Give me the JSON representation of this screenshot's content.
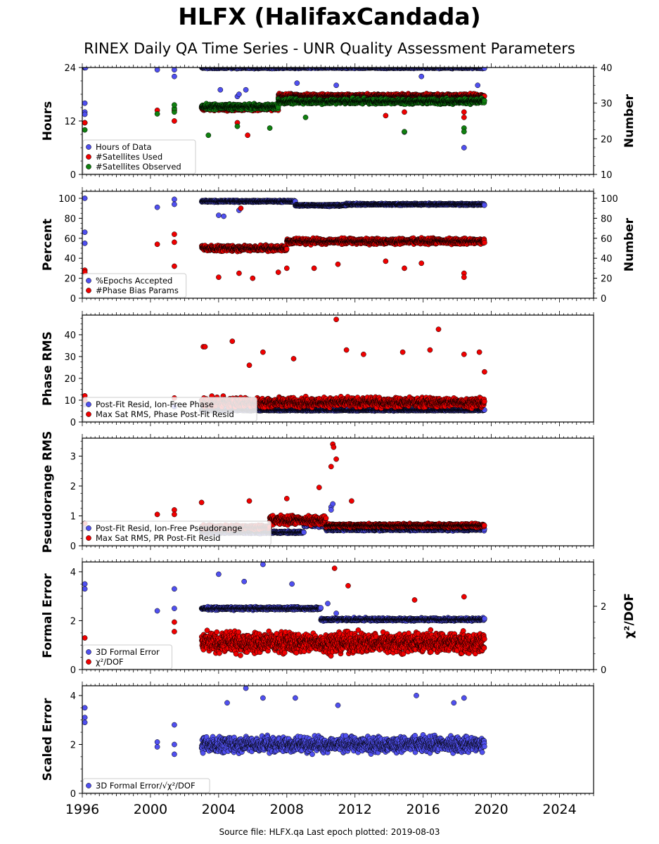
{
  "title": "HLFX (HalifaxCandada)",
  "subtitle": "RINEX Daily QA Time Series - UNR Quality Assessment Parameters",
  "source_text": "Source file: HLFX.qa Last epoch plotted: 2019-08-03",
  "colors": {
    "blue": "#5050f0",
    "red": "#f00000",
    "green": "#108010",
    "edge": "#000000"
  },
  "chart_data": [
    {
      "type": "scatter",
      "ylabel": "Hours",
      "ylabel_right": "Number",
      "xlim": [
        1996,
        2026
      ],
      "ylim": [
        0,
        24
      ],
      "ylim_right": [
        10,
        40
      ],
      "yticks": [
        0,
        12,
        24
      ],
      "yticks_right": [
        10,
        20,
        30,
        40
      ],
      "legend": "bottom-left",
      "series": [
        {
          "name": "Hours of Data",
          "color": "blue",
          "axis": "left",
          "segments": [
            [
              1996.1,
              1996.2,
              24,
              0.2
            ],
            [
              2003.0,
              2019.6,
              24,
              0.3
            ]
          ],
          "points": [
            [
              1996.15,
              16
            ],
            [
              1996.15,
              14
            ],
            [
              1996.15,
              13.5
            ],
            [
              2000.4,
              23.5
            ],
            [
              2001.4,
              23.5
            ],
            [
              2001.4,
              22
            ],
            [
              2004.1,
              19
            ],
            [
              2005.1,
              17.5
            ],
            [
              2005.2,
              18
            ],
            [
              2005.6,
              19
            ],
            [
              2008.6,
              20.5
            ],
            [
              2010.9,
              20
            ],
            [
              2014.9,
              9.5
            ],
            [
              2015.9,
              22
            ],
            [
              2018.4,
              6
            ],
            [
              2019.2,
              20
            ]
          ]
        },
        {
          "name": "#Satellites Used",
          "color": "red",
          "axis": "right",
          "segments": [
            [
              2003.0,
              2007.5,
              28.5,
              0.8
            ],
            [
              2007.5,
              2019.6,
              32,
              0.8
            ]
          ],
          "points": [
            [
              1996.15,
              24.5
            ],
            [
              1996.15,
              24.5
            ],
            [
              2000.4,
              28
            ],
            [
              2001.4,
              28
            ],
            [
              2001.4,
              25
            ],
            [
              2005.1,
              24.5
            ],
            [
              2005.7,
              21
            ],
            [
              2013.8,
              26.5
            ],
            [
              2014.9,
              27.5
            ],
            [
              2018.4,
              26
            ],
            [
              2018.4,
              27.5
            ]
          ]
        },
        {
          "name": "#Satellites Observed",
          "color": "green",
          "axis": "right",
          "segments": [
            [
              2003.0,
              2007.5,
              29,
              1.0
            ],
            [
              2007.5,
              2019.6,
              30.5,
              1.0
            ]
          ],
          "points": [
            [
              1996.15,
              22.5
            ],
            [
              2000.4,
              27
            ],
            [
              2001.4,
              27.5
            ],
            [
              2001.4,
              28.5
            ],
            [
              2001.4,
              29.5
            ],
            [
              2003.4,
              21
            ],
            [
              2005.1,
              23.5
            ],
            [
              2007.0,
              23
            ],
            [
              2009.1,
              26
            ],
            [
              2014.9,
              22
            ],
            [
              2018.4,
              23
            ],
            [
              2018.4,
              22
            ]
          ]
        }
      ]
    },
    {
      "type": "scatter",
      "ylabel": "Percent",
      "ylabel_right": "Number",
      "xlim": [
        1996,
        2026
      ],
      "ylim": [
        0,
        107
      ],
      "ylim_right": [
        0,
        107
      ],
      "yticks": [
        0,
        20,
        40,
        60,
        80,
        100
      ],
      "yticks_right": [
        0,
        20,
        40,
        60,
        80,
        100
      ],
      "legend": "bottom-left",
      "series": [
        {
          "name": "%Epochs Accepted",
          "color": "blue",
          "axis": "left",
          "segments": [
            [
              2003.0,
              2008.5,
              97,
              1.2
            ],
            [
              2008.5,
              2011.5,
              93,
              1.2
            ],
            [
              2011.5,
              2019.6,
              94,
              1.2
            ]
          ],
          "points": [
            [
              1996.15,
              100
            ],
            [
              1996.15,
              66
            ],
            [
              1996.15,
              55
            ],
            [
              2000.4,
              91
            ],
            [
              2001.4,
              99
            ],
            [
              2001.4,
              94
            ],
            [
              2004.0,
              83
            ],
            [
              2004.3,
              82
            ],
            [
              2005.2,
              88
            ]
          ]
        },
        {
          "name": "#Phase Bias Params",
          "color": "red",
          "axis": "right",
          "segments": [
            [
              2003.0,
              2008.0,
              50,
              4
            ],
            [
              2008.0,
              2019.6,
              57,
              4
            ]
          ],
          "points": [
            [
              1996.15,
              28
            ],
            [
              1996.15,
              26
            ],
            [
              2000.4,
              54
            ],
            [
              2001.4,
              64
            ],
            [
              2001.4,
              56
            ],
            [
              2001.4,
              32
            ],
            [
              2004.0,
              21
            ],
            [
              2005.2,
              25
            ],
            [
              2005.3,
              90
            ],
            [
              2006.0,
              20
            ],
            [
              2007.5,
              26
            ],
            [
              2008.0,
              30
            ],
            [
              2009.6,
              30
            ],
            [
              2011.0,
              34
            ],
            [
              2013.8,
              37
            ],
            [
              2014.9,
              30
            ],
            [
              2015.9,
              35
            ],
            [
              2018.4,
              25
            ],
            [
              2018.4,
              21
            ]
          ]
        }
      ]
    },
    {
      "type": "scatter",
      "ylabel": "Phase RMS",
      "xlim": [
        1996,
        2026
      ],
      "ylim": [
        0,
        49
      ],
      "yticks": [
        0,
        10,
        20,
        30,
        40
      ],
      "legend": "bottom-left",
      "series": [
        {
          "name": "Post-Fit Resid, Ion-Free Phase",
          "color": "blue",
          "axis": "left",
          "segments": [
            [
              2003.0,
              2019.6,
              5.5,
              0.5
            ]
          ],
          "points": [
            [
              1996.15,
              8
            ],
            [
              2001.4,
              7
            ]
          ]
        },
        {
          "name": "Max Sat RMS, Phase Post-Fit Resid",
          "color": "red",
          "axis": "left",
          "segments": [
            [
              2003.0,
              2019.6,
              9,
              3
            ]
          ],
          "points": [
            [
              1996.15,
              12
            ],
            [
              1996.15,
              10
            ],
            [
              2001.4,
              11
            ],
            [
              2003.1,
              34.5
            ],
            [
              2003.2,
              34.5
            ],
            [
              2004.8,
              37
            ],
            [
              2005.8,
              26
            ],
            [
              2006.6,
              32
            ],
            [
              2008.4,
              29
            ],
            [
              2010.9,
              47
            ],
            [
              2011.5,
              33
            ],
            [
              2012.5,
              31
            ],
            [
              2014.8,
              32
            ],
            [
              2016.4,
              33
            ],
            [
              2016.9,
              42.5
            ],
            [
              2018.4,
              31
            ],
            [
              2019.3,
              32
            ],
            [
              2019.6,
              23
            ]
          ]
        }
      ]
    },
    {
      "type": "scatter",
      "ylabel": "Pseudorange RMS",
      "xlim": [
        1996,
        2026
      ],
      "ylim": [
        0,
        3.6
      ],
      "yticks": [
        0,
        1,
        2,
        3
      ],
      "legend": "bottom-left",
      "series": [
        {
          "name": "Post-Fit Resid, Ion-Free Pseudorange",
          "color": "blue",
          "axis": "left",
          "segments": [
            [
              2003.0,
              2009.0,
              0.45,
              0.05
            ],
            [
              2009.0,
              2010.3,
              0.7,
              0.1
            ],
            [
              2010.3,
              2019.6,
              0.55,
              0.06
            ]
          ],
          "points": [
            [
              1996.15,
              0.6
            ],
            [
              2010.6,
              1.3
            ],
            [
              2010.6,
              1.2
            ],
            [
              2010.7,
              1.4
            ]
          ]
        },
        {
          "name": "Max Sat RMS, PR Post-Fit Resid",
          "color": "red",
          "axis": "left",
          "segments": [
            [
              2003.0,
              2007.0,
              0.62,
              0.1
            ],
            [
              2007.0,
              2010.3,
              0.85,
              0.2
            ],
            [
              2010.3,
              2019.6,
              0.68,
              0.08
            ]
          ],
          "points": [
            [
              1996.15,
              0.75
            ],
            [
              2000.4,
              1.05
            ],
            [
              2001.4,
              1.2
            ],
            [
              2001.4,
              1.05
            ],
            [
              2003.0,
              1.45
            ],
            [
              2005.8,
              1.5
            ],
            [
              2008.0,
              1.58
            ],
            [
              2009.9,
              1.95
            ],
            [
              2010.6,
              2.65
            ],
            [
              2010.7,
              3.4
            ],
            [
              2010.75,
              3.3
            ],
            [
              2010.9,
              2.9
            ],
            [
              2011.8,
              1.5
            ]
          ]
        }
      ]
    },
    {
      "type": "scatter",
      "ylabel": "Formal Error",
      "ylabel_right": "χ²/DOF",
      "xlim": [
        1996,
        2026
      ],
      "ylim": [
        0,
        4.4
      ],
      "ylim_right": [
        0,
        3.4
      ],
      "yticks": [
        0,
        2,
        4
      ],
      "yticks_right": [
        0,
        2
      ],
      "legend": "bottom-left",
      "series": [
        {
          "name": "3D Formal Error",
          "color": "blue",
          "axis": "left",
          "segments": [
            [
              2003.0,
              2010.0,
              2.5,
              0.08
            ],
            [
              2010.0,
              2019.6,
              2.05,
              0.08
            ]
          ],
          "points": [
            [
              1996.15,
              3.5
            ],
            [
              1996.15,
              3.3
            ],
            [
              2000.4,
              2.4
            ],
            [
              2001.4,
              3.3
            ],
            [
              2001.4,
              2.5
            ],
            [
              2004.0,
              3.9
            ],
            [
              2005.5,
              3.6
            ],
            [
              2006.6,
              4.3
            ],
            [
              2008.3,
              3.5
            ],
            [
              2010.4,
              2.7
            ],
            [
              2010.9,
              2.3
            ]
          ]
        },
        {
          "name": "χ²/DOF",
          "color": "red",
          "axis": "right",
          "segments": [
            [
              2003.0,
              2019.6,
              0.85,
              0.45
            ]
          ],
          "points": [
            [
              1996.15,
              1.0
            ],
            [
              2001.4,
              1.5
            ],
            [
              2001.4,
              1.2
            ],
            [
              2010.8,
              3.2
            ],
            [
              2011.6,
              2.65
            ],
            [
              2015.5,
              2.2
            ],
            [
              2018.4,
              2.3
            ]
          ]
        }
      ]
    },
    {
      "type": "scatter",
      "ylabel": "Scaled Error",
      "xlim": [
        1996,
        2026
      ],
      "ylim": [
        0,
        4.4
      ],
      "yticks": [
        0,
        2,
        4
      ],
      "xticks": [
        1996,
        2000,
        2004,
        2008,
        2012,
        2016,
        2020,
        2024
      ],
      "legend": "bottom-left",
      "series": [
        {
          "name": "3D Formal Error/√χ²/DOF",
          "color": "blue",
          "axis": "left",
          "segments": [
            [
              2003.0,
              2019.6,
              2.0,
              0.45
            ]
          ],
          "points": [
            [
              1996.15,
              3.5
            ],
            [
              1996.15,
              3.1
            ],
            [
              1996.15,
              2.9
            ],
            [
              2000.4,
              2.1
            ],
            [
              2000.4,
              1.9
            ],
            [
              2001.4,
              2.8
            ],
            [
              2001.4,
              2.0
            ],
            [
              2001.4,
              1.6
            ],
            [
              2004.5,
              3.7
            ],
            [
              2005.6,
              4.3
            ],
            [
              2006.6,
              3.9
            ],
            [
              2008.5,
              3.9
            ],
            [
              2011.0,
              3.6
            ],
            [
              2015.6,
              4.0
            ],
            [
              2017.8,
              3.7
            ],
            [
              2018.4,
              3.9
            ]
          ]
        }
      ]
    }
  ]
}
